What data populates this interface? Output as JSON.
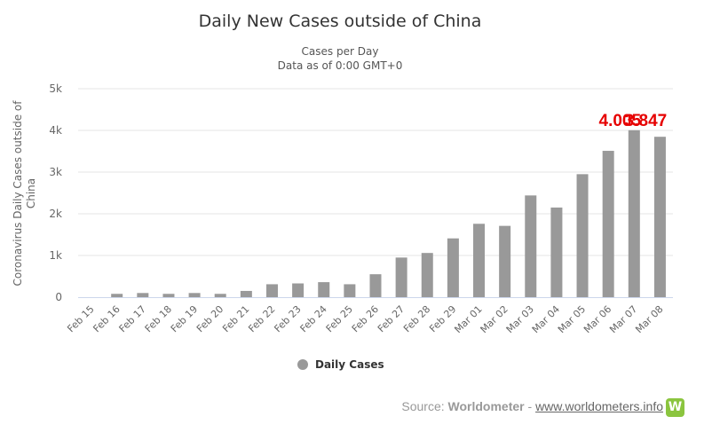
{
  "chart_data": {
    "type": "bar",
    "title": "Daily New Cases outside of China",
    "subtitle_lines": [
      "Cases per Day",
      "Data as of 0:00 GMT+0"
    ],
    "ylabel_lines": [
      "Coronavirus Daily Cases outside of",
      "China"
    ],
    "xlabel": "",
    "ylim": [
      0,
      5000
    ],
    "yticks": [
      0,
      1000,
      2000,
      3000,
      4000,
      5000
    ],
    "ytick_labels": [
      "0",
      "1k",
      "2k",
      "3k",
      "4k",
      "5k"
    ],
    "grid": true,
    "categories": [
      "Feb 15",
      "Feb 16",
      "Feb 17",
      "Feb 18",
      "Feb 19",
      "Feb 20",
      "Feb 21",
      "Feb 22",
      "Feb 23",
      "Feb 24",
      "Feb 25",
      "Feb 26",
      "Feb 27",
      "Feb 28",
      "Feb 29",
      "Mar 01",
      "Mar 02",
      "Mar 03",
      "Mar 04",
      "Mar 05",
      "Mar 06",
      "Mar 07",
      "Mar 08"
    ],
    "series": [
      {
        "name": "Daily Cases",
        "color": "#999999",
        "values": [
          0,
          80,
          100,
          80,
          100,
          80,
          150,
          310,
          330,
          360,
          310,
          550,
          950,
          1060,
          1410,
          1760,
          1710,
          2440,
          2150,
          2950,
          3510,
          4005,
          3847
        ]
      }
    ],
    "legend_position": "bottom-center",
    "annotations": [
      {
        "text": "4.005",
        "category": "Mar 07"
      },
      {
        "text": "3.847",
        "category": "Mar 08"
      }
    ]
  },
  "source": {
    "prefix": "Source: ",
    "name": "Worldometer",
    "separator": " - ",
    "link_text": "www.worldometers.info",
    "logo_letter": "W",
    "logo_color": "#8bc53f"
  }
}
